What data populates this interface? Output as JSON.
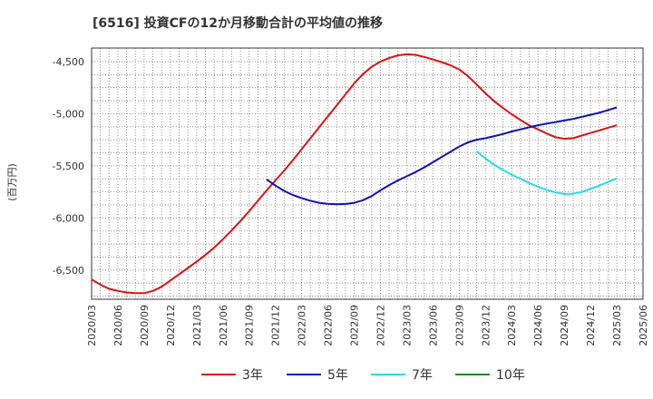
{
  "chart_data": {
    "type": "line",
    "title": "[6516]  投資CFの12か月移動合計の平均値の推移",
    "ylabel": "(百万円)",
    "xlabel": "",
    "ylim": [
      -6780,
      -4370
    ],
    "yticks": [
      -4500,
      -5000,
      -5500,
      -6000,
      -6500
    ],
    "ytick_labels": [
      "-4,500",
      "-5,000",
      "-5,500",
      "-6,000",
      "-6,500"
    ],
    "x_start": "2020/03",
    "x_end": "2025/06",
    "xticks": [
      "2020/03",
      "2020/06",
      "2020/09",
      "2020/12",
      "2021/03",
      "2021/06",
      "2021/09",
      "2021/12",
      "2022/03",
      "2022/06",
      "2022/09",
      "2022/12",
      "2023/03",
      "2023/06",
      "2023/09",
      "2023/12",
      "2024/03",
      "2024/06",
      "2024/09",
      "2024/12",
      "2025/03",
      "2025/06"
    ],
    "grid": true,
    "legend_position": "bottom",
    "series": [
      {
        "name": "3年",
        "color": "#dd1111",
        "x": [
          "2020/03",
          "2020/04",
          "2020/05",
          "2020/06",
          "2020/07",
          "2020/08",
          "2020/09",
          "2020/10",
          "2020/11",
          "2020/12",
          "2021/01",
          "2021/02",
          "2021/03",
          "2021/04",
          "2021/05",
          "2021/06",
          "2021/07",
          "2021/08",
          "2021/09",
          "2021/10",
          "2021/11",
          "2021/12",
          "2022/01",
          "2022/02",
          "2022/03",
          "2022/04",
          "2022/05",
          "2022/06",
          "2022/07",
          "2022/08",
          "2022/09",
          "2022/10",
          "2022/11",
          "2022/12",
          "2023/01",
          "2023/02",
          "2023/03",
          "2023/04",
          "2023/05",
          "2023/06",
          "2023/07",
          "2023/08",
          "2023/09",
          "2023/10",
          "2023/11",
          "2023/12",
          "2024/01",
          "2024/02",
          "2024/03",
          "2024/04",
          "2024/05",
          "2024/06",
          "2024/07",
          "2024/08",
          "2024/09",
          "2024/10",
          "2024/11",
          "2024/12",
          "2025/01",
          "2025/02",
          "2025/03"
        ],
        "values": [
          -6590,
          -6640,
          -6680,
          -6700,
          -6715,
          -6722,
          -6722,
          -6700,
          -6660,
          -6600,
          -6540,
          -6480,
          -6420,
          -6355,
          -6285,
          -6205,
          -6120,
          -6030,
          -5935,
          -5835,
          -5735,
          -5640,
          -5545,
          -5445,
          -5340,
          -5235,
          -5130,
          -5025,
          -4920,
          -4815,
          -4710,
          -4620,
          -4550,
          -4500,
          -4465,
          -4440,
          -4430,
          -4435,
          -4455,
          -4480,
          -4505,
          -4535,
          -4575,
          -4640,
          -4720,
          -4805,
          -4880,
          -4945,
          -5005,
          -5060,
          -5110,
          -5150,
          -5190,
          -5225,
          -5240,
          -5235,
          -5210,
          -5185,
          -5160,
          -5135,
          -5110
        ]
      },
      {
        "name": "5年",
        "color": "#1111bb",
        "x": [
          "2021/11",
          "2021/12",
          "2022/01",
          "2022/02",
          "2022/03",
          "2022/04",
          "2022/05",
          "2022/06",
          "2022/07",
          "2022/08",
          "2022/09",
          "2022/10",
          "2022/11",
          "2022/12",
          "2023/01",
          "2023/02",
          "2023/03",
          "2023/04",
          "2023/05",
          "2023/06",
          "2023/07",
          "2023/08",
          "2023/09",
          "2023/10",
          "2023/11",
          "2023/12",
          "2024/01",
          "2024/02",
          "2024/03",
          "2024/04",
          "2024/05",
          "2024/06",
          "2024/07",
          "2024/08",
          "2024/09",
          "2024/10",
          "2024/11",
          "2024/12",
          "2025/01",
          "2025/02",
          "2025/03"
        ],
        "values": [
          -5630,
          -5690,
          -5740,
          -5780,
          -5810,
          -5835,
          -5855,
          -5865,
          -5868,
          -5866,
          -5855,
          -5830,
          -5790,
          -5735,
          -5685,
          -5640,
          -5600,
          -5560,
          -5515,
          -5465,
          -5415,
          -5365,
          -5315,
          -5275,
          -5250,
          -5235,
          -5215,
          -5195,
          -5170,
          -5150,
          -5130,
          -5110,
          -5095,
          -5080,
          -5065,
          -5050,
          -5030,
          -5010,
          -4990,
          -4965,
          -4940
        ]
      },
      {
        "name": "7年",
        "color": "#22ddee",
        "x": [
          "2023/11",
          "2023/12",
          "2024/01",
          "2024/02",
          "2024/03",
          "2024/04",
          "2024/05",
          "2024/06",
          "2024/07",
          "2024/08",
          "2024/09",
          "2024/10",
          "2024/11",
          "2024/12",
          "2025/01",
          "2025/02",
          "2025/03"
        ],
        "values": [
          -5360,
          -5430,
          -5490,
          -5540,
          -5585,
          -5625,
          -5665,
          -5700,
          -5730,
          -5755,
          -5770,
          -5768,
          -5750,
          -5720,
          -5690,
          -5655,
          -5620
        ]
      },
      {
        "name": "10年",
        "color": "#228822",
        "x": [],
        "values": []
      }
    ]
  }
}
